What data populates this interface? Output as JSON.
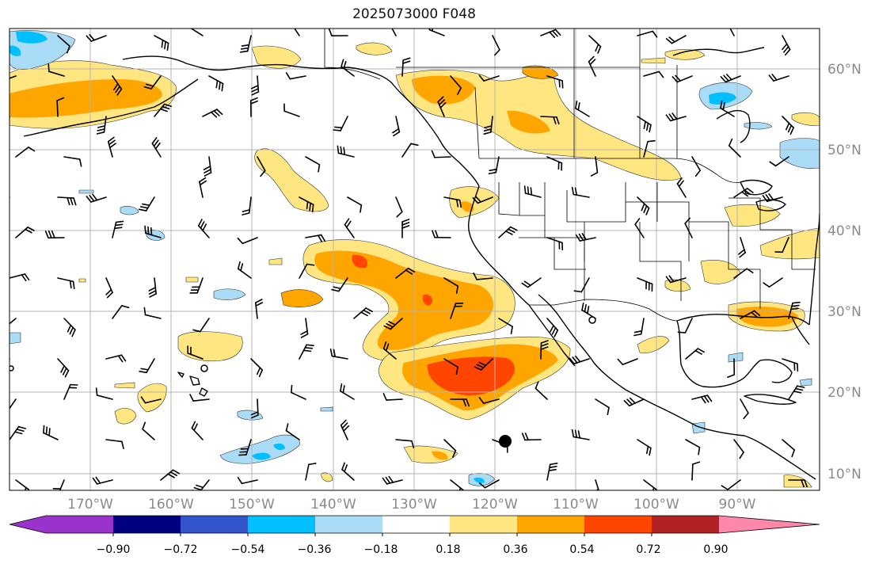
{
  "title": "2025073000 F048",
  "lat_labels": [
    "60°N",
    "50°N",
    "40°N",
    "30°N",
    "20°N",
    "10°N"
  ],
  "lon_labels": [
    "170°W",
    "160°W",
    "150°W",
    "140°W",
    "130°W",
    "120°W",
    "110°W",
    "100°W",
    "90°W"
  ],
  "colorbar": {
    "levels": [
      "−0.90",
      "−0.72",
      "−0.54",
      "−0.36",
      "−0.18",
      "0.18",
      "0.36",
      "0.54",
      "0.72",
      "0.90"
    ],
    "colors": [
      "#9933cc",
      "#000080",
      "#3355cc",
      "#00bfff",
      "#aadcf7",
      "#ffffff",
      "#ffe680",
      "#ffa500",
      "#ff4500",
      "#b22222",
      "#ff88aa"
    ]
  },
  "colors": {
    "coast": "#000000",
    "grid": "#b4b4b4",
    "barb": "#000000",
    "positive_low": "#ffe680",
    "positive_mid": "#ffa500",
    "positive_high": "#ff4500",
    "negative_low": "#aadcf7",
    "negative_mid": "#00bfff"
  }
}
